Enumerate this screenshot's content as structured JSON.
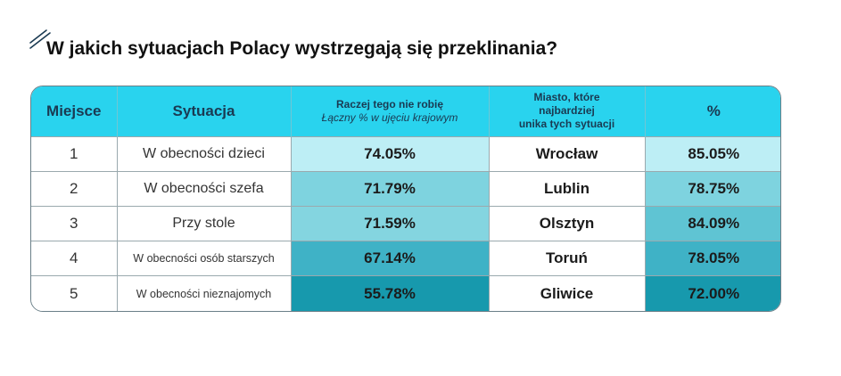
{
  "title": "W jakich sytuacjach Polacy wystrzegają się przeklinania?",
  "decoration_icon": "double-slash-decoration",
  "header": {
    "rank": "Miejsce",
    "situation": "Sytuacja",
    "percent_line1": "Raczej tego nie robię",
    "percent_line2": "Łączny % w ujęciu krajowym",
    "city_line1": "Miasto, które",
    "city_line2": "najbardziej",
    "city_line3": "unika tych sytuacji",
    "city_percent": "%"
  },
  "colors": {
    "header_bg": "#29d3ee",
    "shade_1": "#bdeef5",
    "shade_2": "#84d5e0",
    "shade_3": "#6dcbd8",
    "shade_4": "#3fb2c6",
    "shade_5": "#1799ad"
  },
  "rows": [
    {
      "rank": "1",
      "situation": "W obecności dzieci",
      "national": "74.05%",
      "city": "Wrocław",
      "city_pct": "85.05%",
      "national_shade": "#bdeef5",
      "city_shade": "#bdeef5"
    },
    {
      "rank": "2",
      "situation": "W obecności szefa",
      "national": "71.79%",
      "city": "Lublin",
      "city_pct": "78.75%",
      "national_shade": "#7ed3df",
      "city_shade": "#7ed3df"
    },
    {
      "rank": "3",
      "situation": "Przy stole",
      "national": "71.59%",
      "city": "Olsztyn",
      "city_pct": "84.09%",
      "national_shade": "#84d5e0",
      "city_shade": "#5fc4d3"
    },
    {
      "rank": "4",
      "situation": "W obecności osób starszych",
      "national": "67.14%",
      "city": "Toruń",
      "city_pct": "78.05%",
      "national_shade": "#3fb2c6",
      "city_shade": "#3fb2c6"
    },
    {
      "rank": "5",
      "situation": "W obecności nieznajomych",
      "national": "55.78%",
      "city": "Gliwice",
      "city_pct": "72.00%",
      "national_shade": "#1799ad",
      "city_shade": "#1799ad"
    }
  ],
  "chart_data": {
    "type": "table",
    "title": "W jakich sytuacjach Polacy wystrzegają się przeklinania?",
    "columns": [
      "Miejsce",
      "Sytuacja",
      "Raczej tego nie robię — Łączny % w ujęciu krajowym",
      "Miasto, które najbardziej unika tych sytuacji",
      "%"
    ],
    "rows": [
      [
        "1",
        "W obecności dzieci",
        74.05,
        "Wrocław",
        85.05
      ],
      [
        "2",
        "W obecności szefa",
        71.79,
        "Lublin",
        78.75
      ],
      [
        "3",
        "Przy stole",
        71.59,
        "Olsztyn",
        84.09
      ],
      [
        "4",
        "W obecności osób starszych",
        67.14,
        "Toruń",
        78.05
      ],
      [
        "5",
        "W obecności nieznajomych",
        55.78,
        "Gliwice",
        72.0
      ]
    ]
  }
}
